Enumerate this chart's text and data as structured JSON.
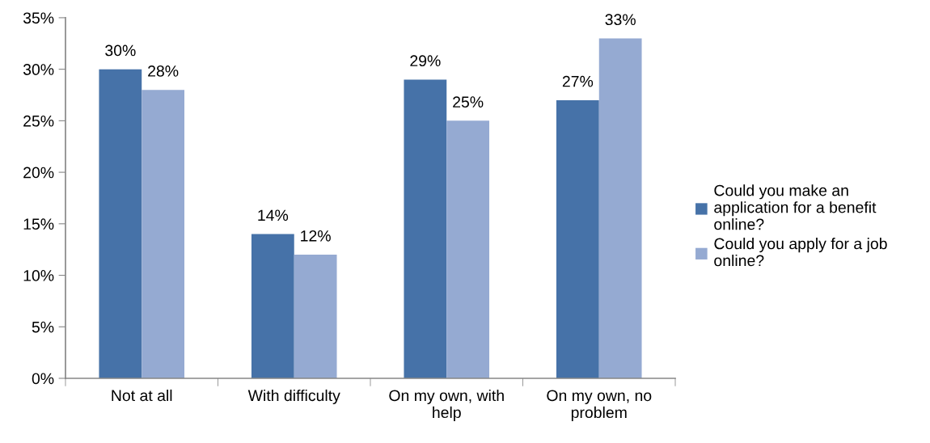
{
  "chart_data": {
    "type": "bar",
    "categories": [
      "Not at all",
      "With difficulty",
      "On my own, with\nhelp",
      "On my own, no\nproblem"
    ],
    "series": [
      {
        "name": "Could you make an\napplication for a benefit\nonline?",
        "color": "#4672a8",
        "values": [
          30,
          14,
          29,
          27
        ],
        "value_labels": [
          "30%",
          "14%",
          "29%",
          "27%"
        ]
      },
      {
        "name": "Could you apply for a job\nonline?",
        "color": "#95aad2",
        "values": [
          28,
          12,
          25,
          33
        ],
        "value_labels": [
          "28%",
          "12%",
          "25%",
          "33%"
        ]
      }
    ],
    "ylim": [
      0,
      35
    ],
    "yticks": [
      {
        "value": 0,
        "label": "0%"
      },
      {
        "value": 5,
        "label": "5%"
      },
      {
        "value": 10,
        "label": "10%"
      },
      {
        "value": 15,
        "label": "15%"
      },
      {
        "value": 20,
        "label": "20%"
      },
      {
        "value": 25,
        "label": "25%"
      },
      {
        "value": 30,
        "label": "30%"
      },
      {
        "value": 35,
        "label": "35%"
      }
    ],
    "grid": false,
    "legend": "right"
  }
}
